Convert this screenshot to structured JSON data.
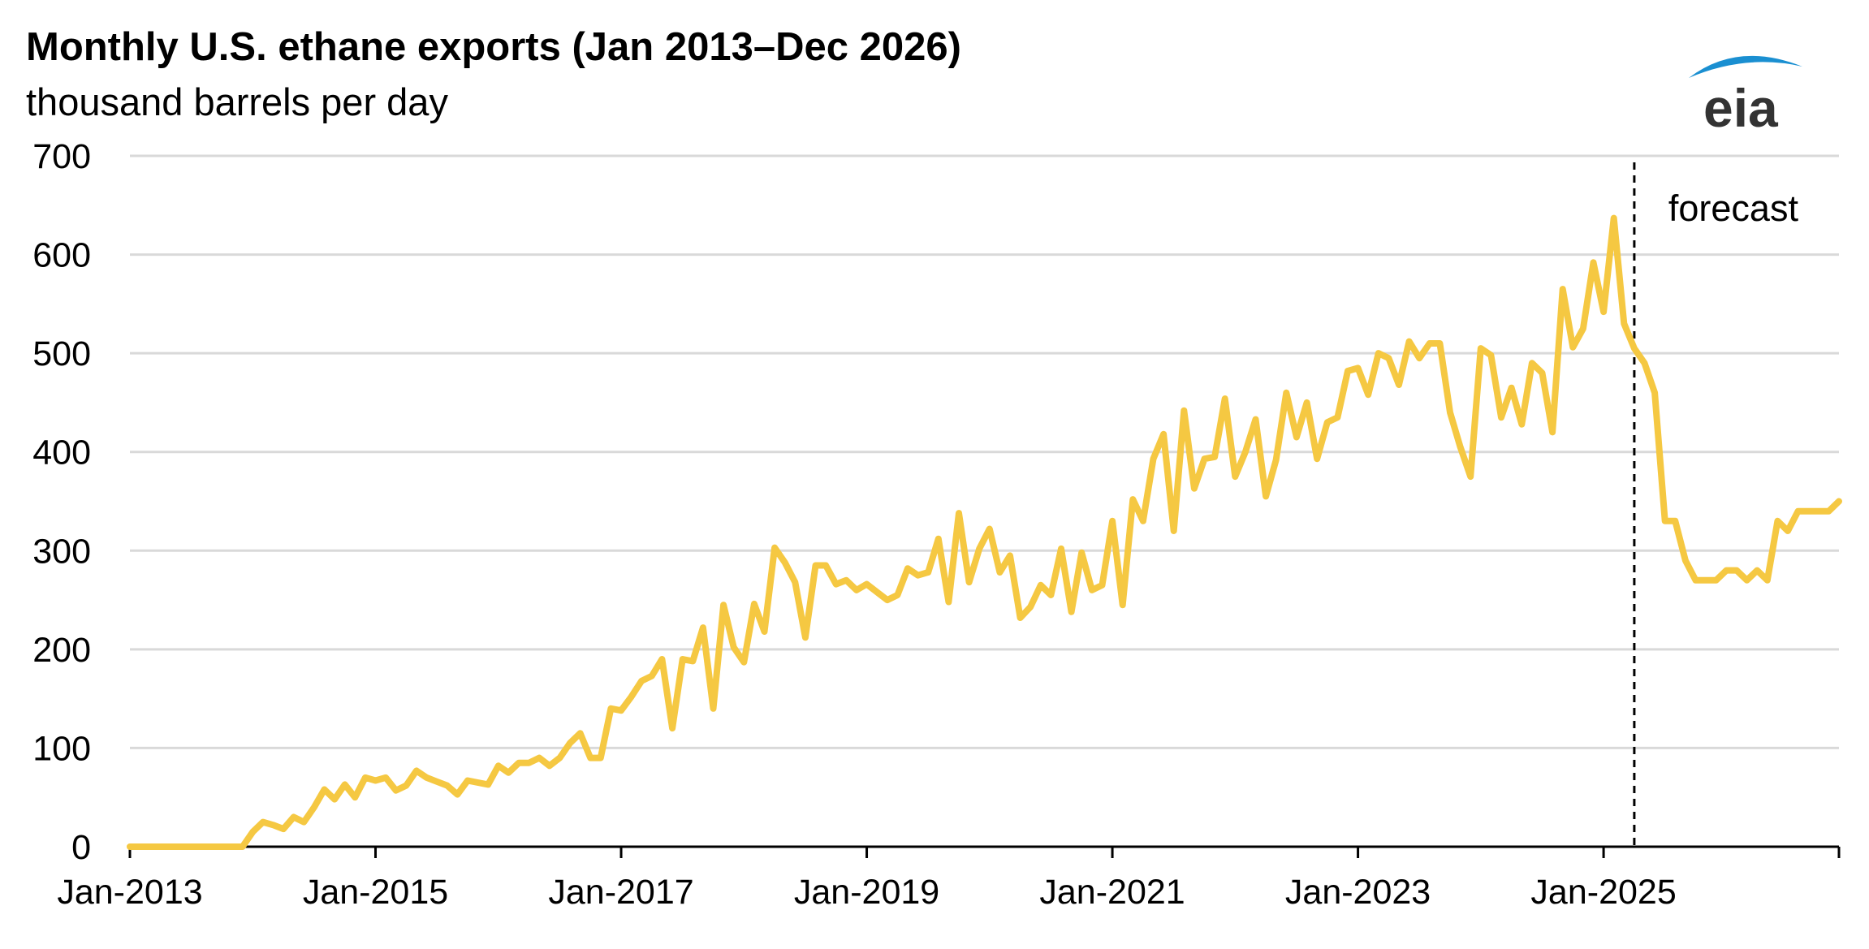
{
  "chart_data": {
    "type": "line",
    "title": "Monthly U.S. ethane exports (Jan 2013–Dec 2026)",
    "subtitle": "thousand barrels per day",
    "xlabel": "",
    "ylabel": "",
    "ylim": [
      0,
      700
    ],
    "y_ticks": [
      "0",
      "100",
      "200",
      "300",
      "400",
      "500",
      "600",
      "700"
    ],
    "x_tick_labels": [
      "Jan-2013",
      "Jan-2015",
      "Jan-2017",
      "Jan-2019",
      "Jan-2021",
      "Jan-2023",
      "Jan-2025"
    ],
    "grid": true,
    "annotation": "forecast",
    "forecast_start": "Apr-2025",
    "series_color": "#F5C842",
    "x_start": "Jan-2013",
    "x_end": "Dec-2026",
    "values": [
      0,
      0,
      0,
      0,
      0,
      0,
      0,
      0,
      0,
      0,
      0,
      0,
      15,
      25,
      22,
      18,
      30,
      25,
      40,
      58,
      48,
      63,
      50,
      70,
      67,
      70,
      57,
      62,
      77,
      70,
      66,
      62,
      53,
      67,
      65,
      63,
      82,
      75,
      85,
      85,
      90,
      82,
      90,
      105,
      115,
      90,
      90,
      140,
      138,
      152,
      168,
      173,
      190,
      120,
      190,
      188,
      222,
      140,
      245,
      202,
      187,
      246,
      218,
      303,
      288,
      268,
      212,
      285,
      285,
      266,
      270,
      260,
      266,
      258,
      250,
      255,
      282,
      275,
      278,
      312,
      248,
      338,
      268,
      302,
      322,
      278,
      295,
      232,
      243,
      265,
      255,
      302,
      238,
      298,
      260,
      265,
      330,
      245,
      352,
      330,
      393,
      418,
      320,
      442,
      363,
      393,
      395,
      454,
      375,
      400,
      433,
      355,
      392,
      460,
      415,
      450,
      393,
      430,
      435,
      482,
      485,
      458,
      500,
      495,
      468,
      512,
      495,
      510,
      510,
      440,
      405,
      375,
      505,
      498,
      435,
      465,
      428,
      490,
      480,
      420,
      565,
      506,
      525,
      592,
      542,
      637,
      530,
      505,
      490,
      460,
      330,
      330,
      290,
      270,
      270,
      270,
      280,
      280,
      270,
      280,
      270,
      330,
      320,
      340,
      340,
      340,
      340,
      350
    ]
  },
  "logo": {
    "text": "eia",
    "name": "eia-logo"
  }
}
